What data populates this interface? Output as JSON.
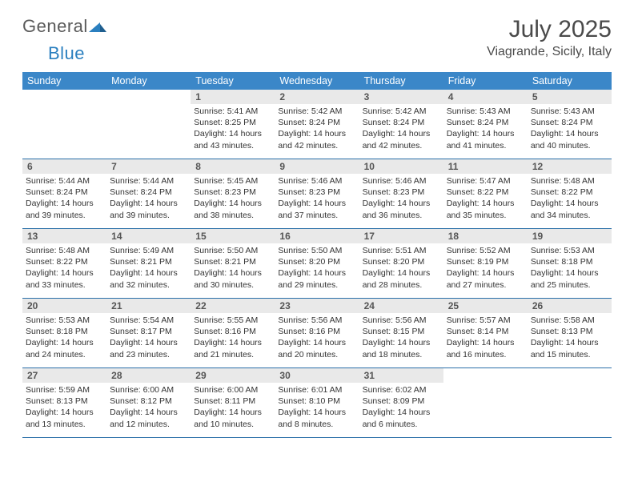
{
  "brand": {
    "part1": "General",
    "part2": "Blue"
  },
  "title": "July 2025",
  "location": "Viagrande, Sicily, Italy",
  "header_bg": "#3b87c8",
  "daynum_bg": "#e9e9e9",
  "row_border": "#2a6fa8",
  "weekdays": [
    "Sunday",
    "Monday",
    "Tuesday",
    "Wednesday",
    "Thursday",
    "Friday",
    "Saturday"
  ],
  "weeks": [
    [
      null,
      null,
      {
        "n": "1",
        "sr": "5:41 AM",
        "ss": "8:25 PM",
        "dl": "14 hours and 43 minutes."
      },
      {
        "n": "2",
        "sr": "5:42 AM",
        "ss": "8:24 PM",
        "dl": "14 hours and 42 minutes."
      },
      {
        "n": "3",
        "sr": "5:42 AM",
        "ss": "8:24 PM",
        "dl": "14 hours and 42 minutes."
      },
      {
        "n": "4",
        "sr": "5:43 AM",
        "ss": "8:24 PM",
        "dl": "14 hours and 41 minutes."
      },
      {
        "n": "5",
        "sr": "5:43 AM",
        "ss": "8:24 PM",
        "dl": "14 hours and 40 minutes."
      }
    ],
    [
      {
        "n": "6",
        "sr": "5:44 AM",
        "ss": "8:24 PM",
        "dl": "14 hours and 39 minutes."
      },
      {
        "n": "7",
        "sr": "5:44 AM",
        "ss": "8:24 PM",
        "dl": "14 hours and 39 minutes."
      },
      {
        "n": "8",
        "sr": "5:45 AM",
        "ss": "8:23 PM",
        "dl": "14 hours and 38 minutes."
      },
      {
        "n": "9",
        "sr": "5:46 AM",
        "ss": "8:23 PM",
        "dl": "14 hours and 37 minutes."
      },
      {
        "n": "10",
        "sr": "5:46 AM",
        "ss": "8:23 PM",
        "dl": "14 hours and 36 minutes."
      },
      {
        "n": "11",
        "sr": "5:47 AM",
        "ss": "8:22 PM",
        "dl": "14 hours and 35 minutes."
      },
      {
        "n": "12",
        "sr": "5:48 AM",
        "ss": "8:22 PM",
        "dl": "14 hours and 34 minutes."
      }
    ],
    [
      {
        "n": "13",
        "sr": "5:48 AM",
        "ss": "8:22 PM",
        "dl": "14 hours and 33 minutes."
      },
      {
        "n": "14",
        "sr": "5:49 AM",
        "ss": "8:21 PM",
        "dl": "14 hours and 32 minutes."
      },
      {
        "n": "15",
        "sr": "5:50 AM",
        "ss": "8:21 PM",
        "dl": "14 hours and 30 minutes."
      },
      {
        "n": "16",
        "sr": "5:50 AM",
        "ss": "8:20 PM",
        "dl": "14 hours and 29 minutes."
      },
      {
        "n": "17",
        "sr": "5:51 AM",
        "ss": "8:20 PM",
        "dl": "14 hours and 28 minutes."
      },
      {
        "n": "18",
        "sr": "5:52 AM",
        "ss": "8:19 PM",
        "dl": "14 hours and 27 minutes."
      },
      {
        "n": "19",
        "sr": "5:53 AM",
        "ss": "8:18 PM",
        "dl": "14 hours and 25 minutes."
      }
    ],
    [
      {
        "n": "20",
        "sr": "5:53 AM",
        "ss": "8:18 PM",
        "dl": "14 hours and 24 minutes."
      },
      {
        "n": "21",
        "sr": "5:54 AM",
        "ss": "8:17 PM",
        "dl": "14 hours and 23 minutes."
      },
      {
        "n": "22",
        "sr": "5:55 AM",
        "ss": "8:16 PM",
        "dl": "14 hours and 21 minutes."
      },
      {
        "n": "23",
        "sr": "5:56 AM",
        "ss": "8:16 PM",
        "dl": "14 hours and 20 minutes."
      },
      {
        "n": "24",
        "sr": "5:56 AM",
        "ss": "8:15 PM",
        "dl": "14 hours and 18 minutes."
      },
      {
        "n": "25",
        "sr": "5:57 AM",
        "ss": "8:14 PM",
        "dl": "14 hours and 16 minutes."
      },
      {
        "n": "26",
        "sr": "5:58 AM",
        "ss": "8:13 PM",
        "dl": "14 hours and 15 minutes."
      }
    ],
    [
      {
        "n": "27",
        "sr": "5:59 AM",
        "ss": "8:13 PM",
        "dl": "14 hours and 13 minutes."
      },
      {
        "n": "28",
        "sr": "6:00 AM",
        "ss": "8:12 PM",
        "dl": "14 hours and 12 minutes."
      },
      {
        "n": "29",
        "sr": "6:00 AM",
        "ss": "8:11 PM",
        "dl": "14 hours and 10 minutes."
      },
      {
        "n": "30",
        "sr": "6:01 AM",
        "ss": "8:10 PM",
        "dl": "14 hours and 8 minutes."
      },
      {
        "n": "31",
        "sr": "6:02 AM",
        "ss": "8:09 PM",
        "dl": "14 hours and 6 minutes."
      },
      null,
      null
    ]
  ],
  "labels": {
    "sunrise": "Sunrise:",
    "sunset": "Sunset:",
    "daylight": "Daylight:"
  }
}
